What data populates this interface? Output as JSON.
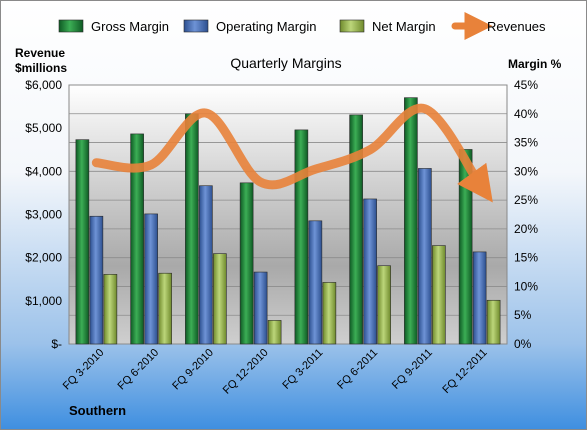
{
  "chart_data": {
    "type": "bar",
    "title": "Quarterly Margins",
    "left_axis_label": "Revenue\n$millions",
    "right_axis_label": "Margin %",
    "footer": "Southern",
    "categories": [
      "FQ 3-2010",
      "FQ 6-2010",
      "FQ 9-2010",
      "FQ 12-2010",
      "FQ 3-2011",
      "FQ 6-2011",
      "FQ 9-2011",
      "FQ 12-2011"
    ],
    "left_ticks": [
      "$-",
      "$1,000",
      "$2,000",
      "$3,000",
      "$4,000",
      "$5,000",
      "$6,000"
    ],
    "right_ticks": [
      "0%",
      "5%",
      "10%",
      "15%",
      "20%",
      "25%",
      "30%",
      "35%",
      "40%",
      "45%"
    ],
    "ylim_left": [
      0,
      6000
    ],
    "ylim_right": [
      0,
      45
    ],
    "series": [
      {
        "name": "Gross Margin",
        "axis": "right",
        "color": "#1f8a3c",
        "values": [
          35.5,
          36.5,
          40.0,
          28.0,
          37.2,
          39.8,
          42.8,
          33.8
        ]
      },
      {
        "name": "Operating Margin",
        "axis": "right",
        "color": "#4a70b8",
        "values": [
          22.2,
          22.6,
          27.5,
          12.5,
          21.4,
          25.2,
          30.5,
          16.0
        ]
      },
      {
        "name": "Net Margin",
        "axis": "right",
        "color": "#9ab84c",
        "values": [
          12.1,
          12.3,
          15.7,
          4.1,
          10.7,
          13.6,
          17.1,
          7.6
        ]
      },
      {
        "name": "Revenues",
        "axis": "left",
        "color": "#e8823a",
        "values": [
          4200,
          4150,
          5350,
          3750,
          4050,
          4500,
          5450,
          3700
        ]
      }
    ],
    "grid": true,
    "legend": "top"
  }
}
